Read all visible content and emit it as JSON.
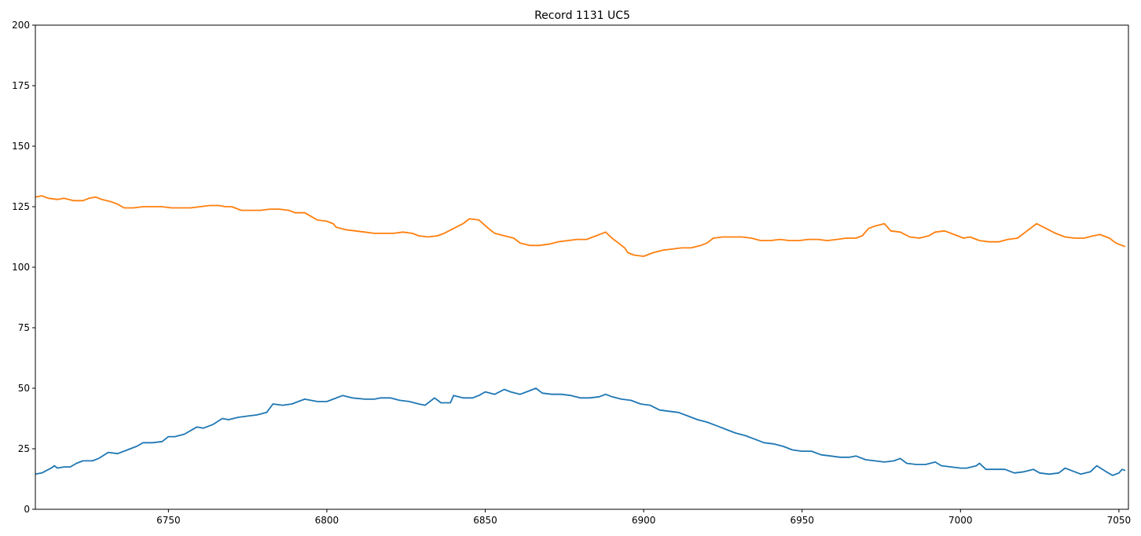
{
  "chart_data": {
    "type": "line",
    "title": "Record 1131 UC5",
    "xlabel": "",
    "ylabel": "",
    "xlim": [
      6708,
      7053
    ],
    "ylim": [
      0,
      200
    ],
    "xticks": [
      6750,
      6800,
      6850,
      6900,
      6950,
      7000,
      7050
    ],
    "yticks": [
      0,
      25,
      50,
      75,
      100,
      125,
      150,
      175,
      200
    ],
    "grid": false,
    "series": [
      {
        "color": "#1f77b4",
        "points": [
          [
            6708,
            14.5
          ],
          [
            6710,
            15
          ],
          [
            6713,
            17
          ],
          [
            6714,
            18
          ],
          [
            6715,
            17
          ],
          [
            6717,
            17.5
          ],
          [
            6719,
            17.5
          ],
          [
            6721,
            19
          ],
          [
            6723,
            20
          ],
          [
            6726,
            20
          ],
          [
            6728,
            21
          ],
          [
            6731,
            23.5
          ],
          [
            6734,
            23
          ],
          [
            6737,
            24.5
          ],
          [
            6740,
            26
          ],
          [
            6742,
            27.5
          ],
          [
            6745,
            27.5
          ],
          [
            6748,
            28
          ],
          [
            6750,
            30
          ],
          [
            6752,
            30
          ],
          [
            6755,
            31
          ],
          [
            6759,
            34
          ],
          [
            6761,
            33.5
          ],
          [
            6764,
            35
          ],
          [
            6767,
            37.5
          ],
          [
            6769,
            37
          ],
          [
            6772,
            38
          ],
          [
            6775,
            38.5
          ],
          [
            6778,
            39
          ],
          [
            6781,
            40
          ],
          [
            6783,
            43.5
          ],
          [
            6786,
            43
          ],
          [
            6789,
            43.5
          ],
          [
            6791,
            44.5
          ],
          [
            6793,
            45.5
          ],
          [
            6795,
            45
          ],
          [
            6797,
            44.5
          ],
          [
            6800,
            44.5
          ],
          [
            6802,
            45.5
          ],
          [
            6805,
            47
          ],
          [
            6808,
            46
          ],
          [
            6812,
            45.5
          ],
          [
            6815,
            45.5
          ],
          [
            6817,
            46
          ],
          [
            6820,
            46
          ],
          [
            6823,
            45
          ],
          [
            6826,
            44.5
          ],
          [
            6829,
            43.5
          ],
          [
            6831,
            43
          ],
          [
            6834,
            46
          ],
          [
            6836,
            44
          ],
          [
            6839,
            44
          ],
          [
            6840,
            47
          ],
          [
            6843,
            46
          ],
          [
            6846,
            46
          ],
          [
            6848,
            47
          ],
          [
            6850,
            48.5
          ],
          [
            6853,
            47.5
          ],
          [
            6856,
            49.5
          ],
          [
            6858,
            48.5
          ],
          [
            6861,
            47.5
          ],
          [
            6864,
            49
          ],
          [
            6866,
            50
          ],
          [
            6868,
            48
          ],
          [
            6871,
            47.5
          ],
          [
            6874,
            47.5
          ],
          [
            6877,
            47
          ],
          [
            6880,
            46
          ],
          [
            6883,
            46
          ],
          [
            6886,
            46.5
          ],
          [
            6888,
            47.5
          ],
          [
            6890,
            46.5
          ],
          [
            6893,
            45.5
          ],
          [
            6896,
            45
          ],
          [
            6899,
            43.5
          ],
          [
            6902,
            43
          ],
          [
            6905,
            41
          ],
          [
            6908,
            40.5
          ],
          [
            6911,
            40
          ],
          [
            6914,
            38.5
          ],
          [
            6917,
            37
          ],
          [
            6920,
            36
          ],
          [
            6923,
            34.5
          ],
          [
            6926,
            33
          ],
          [
            6929,
            31.5
          ],
          [
            6932,
            30.5
          ],
          [
            6935,
            29
          ],
          [
            6938,
            27.5
          ],
          [
            6941,
            27
          ],
          [
            6944,
            26
          ],
          [
            6947,
            24.5
          ],
          [
            6950,
            24
          ],
          [
            6953,
            24
          ],
          [
            6956,
            22.5
          ],
          [
            6959,
            22
          ],
          [
            6962,
            21.5
          ],
          [
            6965,
            21.5
          ],
          [
            6967,
            22
          ],
          [
            6970,
            20.5
          ],
          [
            6973,
            20
          ],
          [
            6976,
            19.5
          ],
          [
            6979,
            20
          ],
          [
            6981,
            21
          ],
          [
            6983,
            19
          ],
          [
            6986,
            18.5
          ],
          [
            6989,
            18.5
          ],
          [
            6992,
            19.5
          ],
          [
            6994,
            18
          ],
          [
            6997,
            17.5
          ],
          [
            7000,
            17
          ],
          [
            7002,
            17
          ],
          [
            7005,
            18
          ],
          [
            7006,
            19
          ],
          [
            7008,
            16.5
          ],
          [
            7011,
            16.5
          ],
          [
            7014,
            16.5
          ],
          [
            7017,
            15
          ],
          [
            7020,
            15.5
          ],
          [
            7023,
            16.5
          ],
          [
            7025,
            15
          ],
          [
            7028,
            14.5
          ],
          [
            7031,
            15
          ],
          [
            7033,
            17
          ],
          [
            7035,
            16
          ],
          [
            7038,
            14.5
          ],
          [
            7041,
            15.5
          ],
          [
            7043,
            18
          ],
          [
            7046,
            15.5
          ],
          [
            7048,
            14
          ],
          [
            7050,
            15
          ],
          [
            7051,
            16.5
          ],
          [
            7052,
            16
          ]
        ]
      },
      {
        "color": "#ff7f0e",
        "points": [
          [
            6708,
            129
          ],
          [
            6710,
            129.5
          ],
          [
            6712,
            128.5
          ],
          [
            6715,
            128
          ],
          [
            6717,
            128.5
          ],
          [
            6720,
            127.5
          ],
          [
            6723,
            127.5
          ],
          [
            6725,
            128.5
          ],
          [
            6727,
            129
          ],
          [
            6729,
            128
          ],
          [
            6732,
            127
          ],
          [
            6734,
            126
          ],
          [
            6736,
            124.5
          ],
          [
            6739,
            124.5
          ],
          [
            6742,
            125
          ],
          [
            6745,
            125
          ],
          [
            6748,
            125
          ],
          [
            6751,
            124.5
          ],
          [
            6754,
            124.5
          ],
          [
            6757,
            124.5
          ],
          [
            6760,
            125
          ],
          [
            6763,
            125.5
          ],
          [
            6766,
            125.5
          ],
          [
            6768,
            125
          ],
          [
            6770,
            125
          ],
          [
            6773,
            123.5
          ],
          [
            6776,
            123.5
          ],
          [
            6779,
            123.5
          ],
          [
            6782,
            124
          ],
          [
            6785,
            124
          ],
          [
            6788,
            123.5
          ],
          [
            6790,
            122.5
          ],
          [
            6793,
            122.5
          ],
          [
            6795,
            121
          ],
          [
            6797,
            119.5
          ],
          [
            6800,
            119
          ],
          [
            6802,
            118
          ],
          [
            6803,
            116.5
          ],
          [
            6806,
            115.5
          ],
          [
            6809,
            115
          ],
          [
            6812,
            114.5
          ],
          [
            6815,
            114
          ],
          [
            6818,
            114
          ],
          [
            6821,
            114
          ],
          [
            6824,
            114.5
          ],
          [
            6827,
            114
          ],
          [
            6829,
            113
          ],
          [
            6832,
            112.5
          ],
          [
            6835,
            113
          ],
          [
            6837,
            114
          ],
          [
            6840,
            116
          ],
          [
            6843,
            118
          ],
          [
            6845,
            120
          ],
          [
            6848,
            119.5
          ],
          [
            6851,
            116
          ],
          [
            6853,
            114
          ],
          [
            6856,
            113
          ],
          [
            6859,
            112
          ],
          [
            6861,
            110
          ],
          [
            6864,
            109
          ],
          [
            6867,
            109
          ],
          [
            6870,
            109.5
          ],
          [
            6873,
            110.5
          ],
          [
            6876,
            111
          ],
          [
            6879,
            111.5
          ],
          [
            6882,
            111.5
          ],
          [
            6885,
            113
          ],
          [
            6888,
            114.5
          ],
          [
            6890,
            112
          ],
          [
            6892,
            110
          ],
          [
            6894,
            108
          ],
          [
            6895,
            106
          ],
          [
            6897,
            105
          ],
          [
            6900,
            104.5
          ],
          [
            6903,
            106
          ],
          [
            6906,
            107
          ],
          [
            6909,
            107.5
          ],
          [
            6912,
            108
          ],
          [
            6915,
            108
          ],
          [
            6918,
            109
          ],
          [
            6920,
            110
          ],
          [
            6922,
            112
          ],
          [
            6925,
            112.5
          ],
          [
            6928,
            112.5
          ],
          [
            6931,
            112.5
          ],
          [
            6934,
            112
          ],
          [
            6937,
            111
          ],
          [
            6940,
            111
          ],
          [
            6943,
            111.5
          ],
          [
            6946,
            111
          ],
          [
            6949,
            111
          ],
          [
            6952,
            111.5
          ],
          [
            6955,
            111.5
          ],
          [
            6958,
            111
          ],
          [
            6961,
            111.5
          ],
          [
            6964,
            112
          ],
          [
            6967,
            112
          ],
          [
            6969,
            113
          ],
          [
            6971,
            116
          ],
          [
            6973,
            117
          ],
          [
            6976,
            118
          ],
          [
            6978,
            115
          ],
          [
            6981,
            114.5
          ],
          [
            6984,
            112.5
          ],
          [
            6987,
            112
          ],
          [
            6990,
            113
          ],
          [
            6992,
            114.5
          ],
          [
            6995,
            115
          ],
          [
            6998,
            113.5
          ],
          [
            7001,
            112
          ],
          [
            7003,
            112.5
          ],
          [
            7006,
            111
          ],
          [
            7009,
            110.5
          ],
          [
            7012,
            110.5
          ],
          [
            7015,
            111.5
          ],
          [
            7018,
            112
          ],
          [
            7021,
            115
          ],
          [
            7024,
            118
          ],
          [
            7027,
            116
          ],
          [
            7030,
            114
          ],
          [
            7033,
            112.5
          ],
          [
            7036,
            112
          ],
          [
            7039,
            112
          ],
          [
            7042,
            113
          ],
          [
            7044,
            113.5
          ],
          [
            7047,
            112
          ],
          [
            7049,
            110
          ],
          [
            7051,
            109
          ],
          [
            7052,
            108.5
          ]
        ]
      }
    ]
  }
}
